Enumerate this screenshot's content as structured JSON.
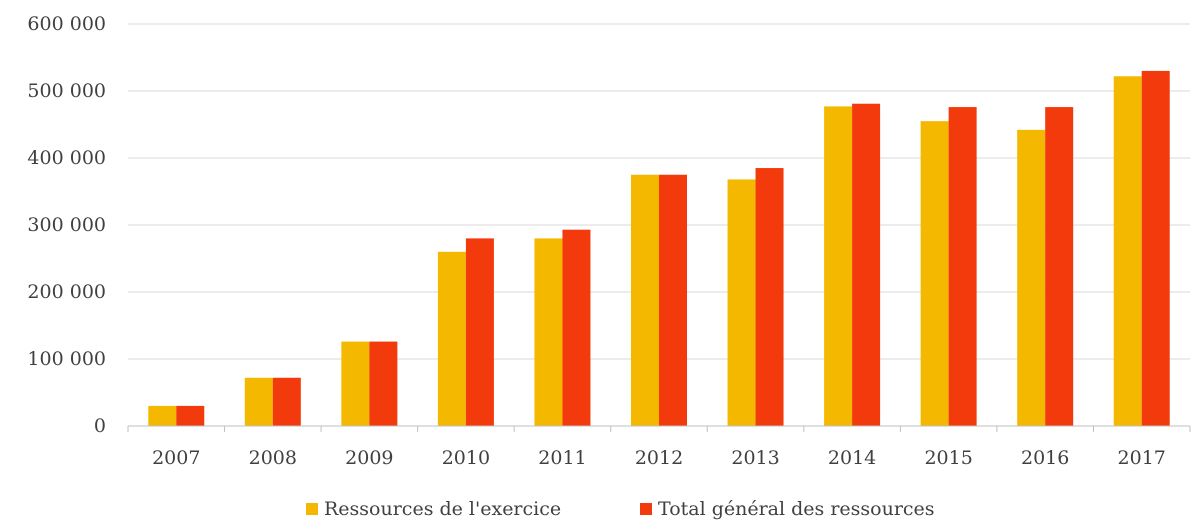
{
  "chart_data": {
    "type": "bar",
    "title": "",
    "xlabel": "",
    "ylabel": "",
    "categories": [
      "2007",
      "2008",
      "2009",
      "2010",
      "2011",
      "2012",
      "2013",
      "2014",
      "2015",
      "2016",
      "2017"
    ],
    "series": [
      {
        "name": "Ressources de l'exercice",
        "color": "#F5B800",
        "values": [
          30000,
          72000,
          126000,
          260000,
          280000,
          375000,
          368000,
          477000,
          455000,
          442000,
          522000
        ]
      },
      {
        "name": "Total général des ressources",
        "color": "#F23A0C",
        "values": [
          30000,
          72000,
          126000,
          280000,
          293000,
          375000,
          385000,
          481000,
          476000,
          476000,
          530000
        ]
      }
    ],
    "ylim": [
      0,
      600000
    ],
    "yticks": [
      0,
      100000,
      200000,
      300000,
      400000,
      500000,
      600000
    ],
    "ytick_labels": [
      "0",
      "100 000",
      "200 000",
      "300 000",
      "400 000",
      "500 000",
      "600 000"
    ],
    "grid": true,
    "legend_position": "bottom"
  }
}
